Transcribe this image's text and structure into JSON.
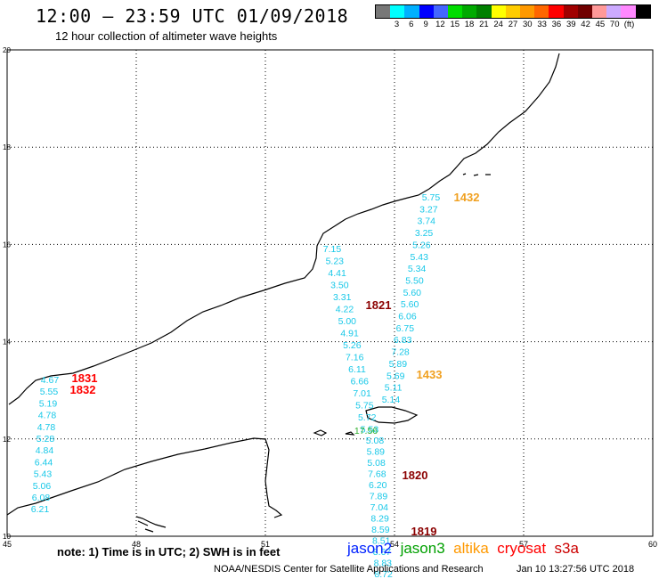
{
  "header": {
    "title": "12:00 – 23:59 UTC 01/09/2018",
    "subtitle": "12 hour collection of altimeter wave heights"
  },
  "colorbar": {
    "colors": [
      "#777777",
      "#00ffff",
      "#00b0ff",
      "#0000ff",
      "#4466ff",
      "#00dd00",
      "#00aa00",
      "#008000",
      "#ffff00",
      "#ffcc00",
      "#ff9900",
      "#ff6600",
      "#ff0000",
      "#a00000",
      "#700000",
      "#ff9999",
      "#ccaaff",
      "#ff88ff",
      "#000000"
    ],
    "labels": [
      "3",
      "6",
      "9",
      "12",
      "15",
      "18",
      "21",
      "24",
      "27",
      "30",
      "33",
      "36",
      "39",
      "42",
      "45",
      "70",
      "(ft)"
    ]
  },
  "axes": {
    "x_ticks": [
      "45",
      "48",
      "51",
      "54",
      "57",
      "60"
    ],
    "y_ticks": [
      "20",
      "18",
      "16",
      "14",
      "12",
      "10"
    ]
  },
  "passes": [
    {
      "time": "1432",
      "color": "#f0a020"
    },
    {
      "time": "1433",
      "color": "#f0a020"
    },
    {
      "time": "1821",
      "color": "#8b0000"
    },
    {
      "time": "1820",
      "color": "#8b0000"
    },
    {
      "time": "1819",
      "color": "#8b0000"
    },
    {
      "time": "1831",
      "color": "#ff0000"
    },
    {
      "time": "1832",
      "color": "#ff0000"
    }
  ],
  "track_a": [
    "5.75",
    "3.27",
    "3.74",
    "3.25",
    "5.26",
    "5.43",
    "5.34",
    "5.50",
    "5.60",
    "5.60",
    "6.06",
    "6.75",
    "6.83",
    "7.28",
    "5.89",
    "5.69",
    "5.11",
    "5.14"
  ],
  "track_b": [
    "7.15",
    "5.23",
    "4.41",
    "3.50",
    "3.31",
    "4.22",
    "5.00",
    "4.91",
    "5.26",
    "7.16",
    "6.11",
    "6.66",
    "7.01",
    "5.75",
    "5.72",
    "5.53"
  ],
  "track_b_green": "17.56",
  "track_c": [
    "5.08",
    "5.89",
    "5.08",
    "7.68",
    "6.20",
    "7.89",
    "7.04",
    "8.29",
    "8.59",
    "8.51",
    "8.67",
    "8.83",
    "8.72"
  ],
  "track_d": [
    "4.67",
    "5.55",
    "5.19",
    "4.78",
    "4.78",
    "5.28",
    "4.84",
    "6.44",
    "5.43",
    "5.06",
    "6.08",
    "6.21"
  ],
  "footer": {
    "note": "note:  1) Time is in UTC;  2) SWH is in feet",
    "credit": "NOAA/NESDIS Center for Satellite Applications and Research",
    "stamp": "Jan 10 13:27:56 UTC 2018",
    "satellites": [
      {
        "name": "jason2",
        "color": "#0022ff"
      },
      {
        "name": "jason3",
        "color": "#00a000"
      },
      {
        "name": "altika",
        "color": "#ff9900"
      },
      {
        "name": "cryosat",
        "color": "#ff0000"
      },
      {
        "name": "s3a",
        "color": "#cc0000"
      }
    ]
  }
}
